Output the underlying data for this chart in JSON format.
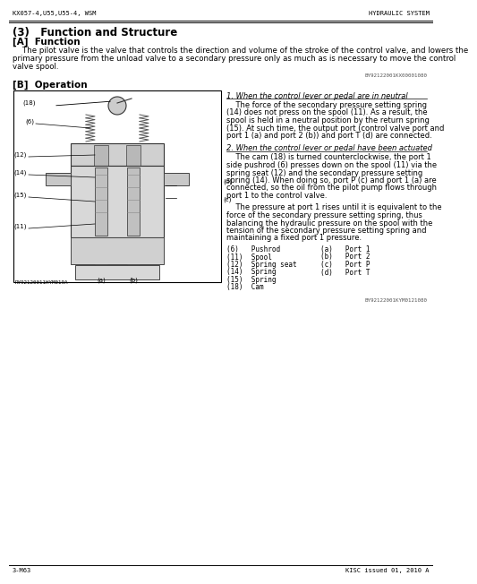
{
  "bg_color": "#ffffff",
  "header_left": "KX057-4,U55,U55-4, WSM",
  "header_right": "HYDRAULIC SYSTEM",
  "section_title": "(3)   Function and Structure",
  "subsection_A": "[A]  Function",
  "function_text": "    The pilot valve is the valve that controls the direction and volume of the stroke of the control valve, and lowers the\nprimary pressure from the unload valve to a secondary pressure only as much as is necessary to move the control\nvalve spool.",
  "ref_code1": "BY92122001KX00001080",
  "subsection_B": "[B]  Operation",
  "diagram_label": "RY92120011HYM019A",
  "op_heading1": "1. When the control lever or pedal are in neutral",
  "op_text1": "    The force of the secondary pressure setting spring\n(14) does not press on the spool (11). As a result, the\nspool is held in a neutral position by the return spring\n(15). At such time, the output port (control valve port and\nport 1 (a) and port 2 (b)) and port T (d) are connected.",
  "op_heading2": "2. When the control lever or pedal have been actuated",
  "op_text2": "    The cam (18) is turned counterclockwise, the port 1\nside pushrod (6) presses down on the spool (11) via the\nspring seat (12) and the secondary pressure setting\nspring (14). When doing so, port P (c) and port 1 (a) are\nconnected, so the oil from the pilot pump flows through\nport 1 to the control valve.",
  "op_text3": "    The pressure at port 1 rises until it is equivalent to the\nforce of the secondary pressure setting spring, thus\nbalancing the hydraulic pressure on the spool with the\ntension of the secondary pressure setting spring and\nmaintaining a fixed port 1 pressure.",
  "parts_col1": [
    "(6)   Pushrod",
    "(11)  Spool",
    "(12)  Spring seat",
    "(14)  Spring",
    "(15)  Spring",
    "(18)  Cam"
  ],
  "parts_col2": [
    "(a)   Port 1",
    "(b)   Port 2",
    "(c)   Port P",
    "(d)   Port T"
  ],
  "ref_code2": "BY92122001KYM0121080",
  "footer_left": "3-M63",
  "footer_right": "KISC issued 01, 2010 A"
}
